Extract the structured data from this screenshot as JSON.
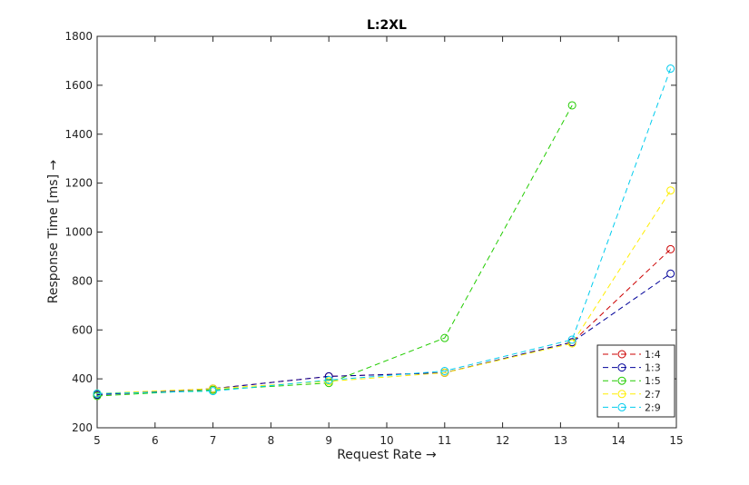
{
  "chart_data": {
    "type": "line",
    "title": "L:2XL",
    "xlabel": "Request Rate →",
    "ylabel": "Response Time [ms] →",
    "xlim": [
      5,
      15
    ],
    "ylim": [
      200,
      1800
    ],
    "x_ticks": [
      5,
      6,
      7,
      8,
      9,
      10,
      11,
      12,
      13,
      14,
      15
    ],
    "y_ticks": [
      200,
      400,
      600,
      800,
      1000,
      1200,
      1400,
      1600,
      1800
    ],
    "grid": false,
    "legend_position": "bottom-right",
    "line_style": "dashed",
    "marker": "circle",
    "series": [
      {
        "name": "1:4",
        "color": "#cc0000",
        "points": [
          [
            5,
            335
          ],
          [
            7,
            360
          ],
          [
            9,
            410
          ],
          [
            11,
            425
          ],
          [
            13.2,
            550
          ],
          [
            14.9,
            930
          ]
        ]
      },
      {
        "name": "1:3",
        "color": "#000099",
        "points": [
          [
            5,
            335
          ],
          [
            7,
            360
          ],
          [
            9,
            410
          ],
          [
            11,
            425
          ],
          [
            13.2,
            550
          ],
          [
            14.9,
            830
          ]
        ]
      },
      {
        "name": "1:5",
        "color": "#22cc00",
        "points": [
          [
            5,
            330
          ],
          [
            7,
            355
          ],
          [
            9,
            383
          ],
          [
            11,
            567
          ],
          [
            13.2,
            1518
          ]
        ]
      },
      {
        "name": "2:7",
        "color": "#ffee00",
        "points": [
          [
            5,
            340
          ],
          [
            7,
            360
          ],
          [
            9,
            390
          ],
          [
            11,
            425
          ],
          [
            13.2,
            545
          ],
          [
            14.9,
            1170
          ]
        ]
      },
      {
        "name": "2:9",
        "color": "#00ccee",
        "points": [
          [
            5,
            340
          ],
          [
            7,
            350
          ],
          [
            9,
            395
          ],
          [
            11,
            432
          ],
          [
            13.2,
            560
          ],
          [
            14.9,
            1668
          ]
        ]
      }
    ]
  }
}
